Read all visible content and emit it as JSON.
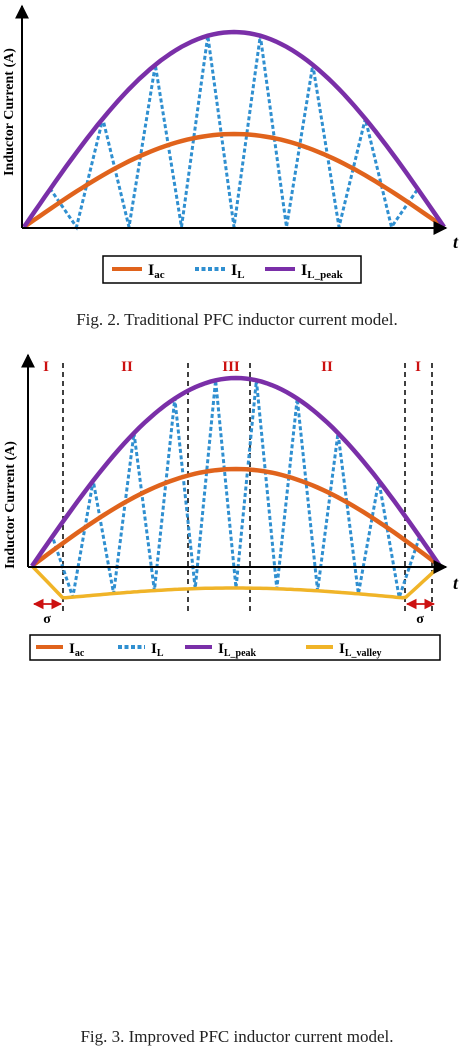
{
  "colors": {
    "i_ac": "#e0631c",
    "i_l": "#2f8fd0",
    "i_l_peak": "#7a2fa8",
    "i_l_valley": "#f0b428",
    "axis": "#000000",
    "region_label": "#cc1111"
  },
  "figure1": {
    "ylabel": "Inductor Current (A)",
    "xlabel": "t",
    "caption": "Fig. 2. Traditional PFC inductor current model.",
    "legend": [
      {
        "key": "i_ac",
        "main": "I",
        "sub": "ac",
        "style": "solid"
      },
      {
        "key": "i_l",
        "main": "I",
        "sub": "L",
        "style": "dashed"
      },
      {
        "key": "i_l_peak",
        "main": "I",
        "sub": "L_peak",
        "style": "solid"
      }
    ]
  },
  "figure2": {
    "ylabel": "Inductor Current (A)",
    "xlabel": "t",
    "caption": "Fig. 3. Improved PFC inductor current model.",
    "regions": [
      "I",
      "II",
      "III",
      "II",
      "I"
    ],
    "sigma": "σ",
    "legend": [
      {
        "key": "i_ac",
        "main": "I",
        "sub": "ac",
        "style": "solid"
      },
      {
        "key": "i_l",
        "main": "I",
        "sub": "L",
        "style": "dashed"
      },
      {
        "key": "i_l_peak",
        "main": "I",
        "sub": "L_peak",
        "style": "solid"
      },
      {
        "key": "i_l_valley",
        "main": "I",
        "sub": "L_valley",
        "style": "solid"
      }
    ]
  }
}
